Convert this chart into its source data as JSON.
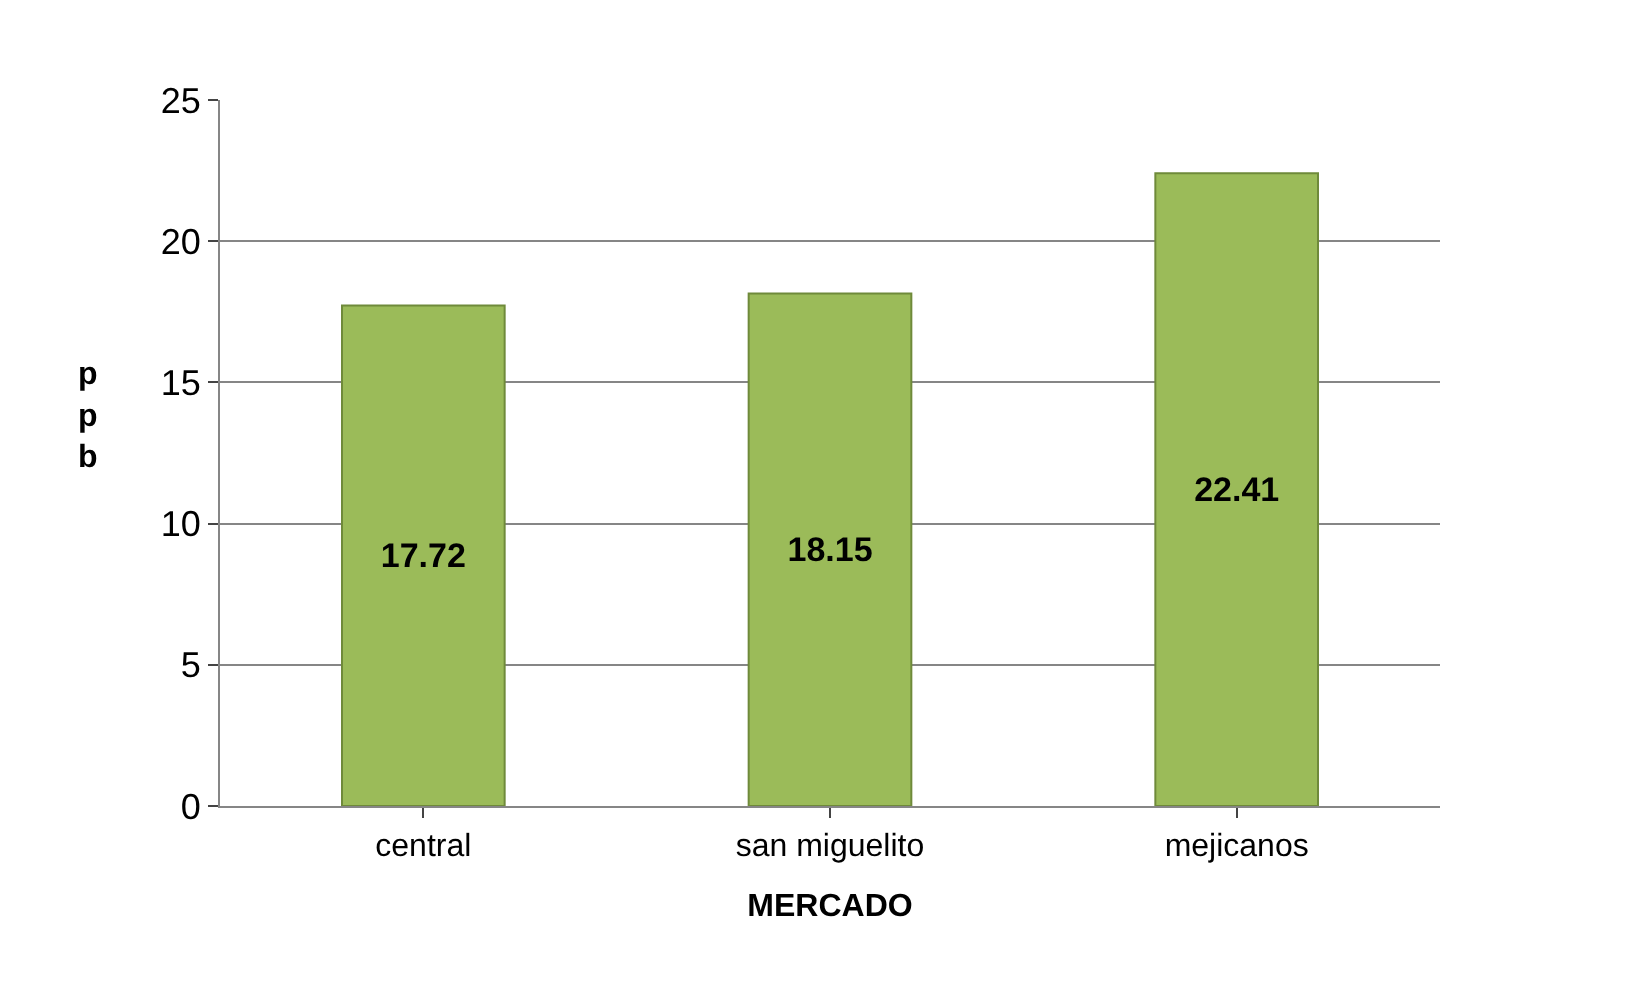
{
  "chart_data": {
    "type": "bar",
    "categories": [
      "central",
      "san miguelito",
      "mejicanos"
    ],
    "values": [
      17.72,
      18.15,
      22.41
    ],
    "color": "#9bbb59",
    "xlabel": "MERCADO",
    "ylabel": "ppb",
    "ylim": [
      0,
      25
    ],
    "yticks": [
      0,
      5,
      10,
      15,
      20,
      25
    ],
    "grid": "y",
    "data_labels": true
  }
}
